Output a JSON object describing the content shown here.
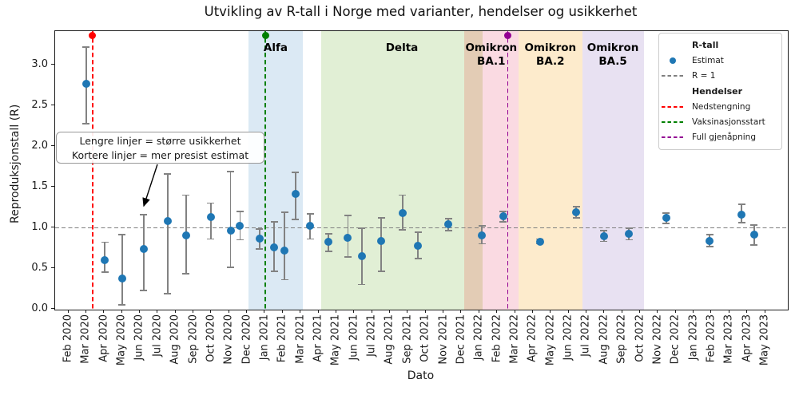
{
  "title": "Utvikling av R-tall i Norge med varianter, hendelser og usikkerhet",
  "axes": {
    "x_label": "Dato",
    "y_label": "Reproduksjonstall (R)"
  },
  "annotation": {
    "line1": "Lengre linjer = større usikkerhet",
    "line2": "Kortere linjer = mer presist estimat"
  },
  "legend": {
    "rows": [
      {
        "type": "header",
        "label": "R-tall"
      },
      {
        "type": "item",
        "marker": "dot",
        "color": "#1f77b4",
        "label": "Estimat"
      },
      {
        "type": "item",
        "marker": "dash",
        "color": "#7f7f7f",
        "label": "R = 1"
      },
      {
        "type": "header",
        "label": "Hendelser"
      },
      {
        "type": "item",
        "marker": "dash",
        "color": "#ff0000",
        "label": "Nedstengning"
      },
      {
        "type": "item",
        "marker": "dash",
        "color": "#008000",
        "label": "Vaksinasjonsstart"
      },
      {
        "type": "item",
        "marker": "dash",
        "color": "#930093",
        "label": "Full gjenåpning"
      }
    ]
  },
  "chart_data": {
    "type": "scatter",
    "title": "Utvikling av R-tall i Norge med varianter, hendelser og usikkerhet",
    "xlabel": "Dato",
    "ylabel": "Reproduksjonstall (R)",
    "ylim": [
      0,
      3.41
    ],
    "grid": false,
    "legend_position": "upper right",
    "y_tick_labels": [
      "0.0",
      "0.5",
      "1.0",
      "1.5",
      "2.0",
      "2.5",
      "3.0"
    ],
    "x_tick_labels": [
      "Feb 2020",
      "Mar 2020",
      "Apr 2020",
      "May 2020",
      "Jun 2020",
      "Jul 2020",
      "Aug 2020",
      "Sep 2020",
      "Oct 2020",
      "Nov 2020",
      "Dec 2020",
      "Jan 2021",
      "Feb 2021",
      "Mar 2021",
      "Apr 2021",
      "May 2021",
      "Jun 2021",
      "Jul 2021",
      "Aug 2021",
      "Sep 2021",
      "Oct 2021",
      "Nov 2021",
      "Dec 2021",
      "Jan 2022",
      "Feb 2022",
      "Mar 2022",
      "Apr 2022",
      "May 2022",
      "Jun 2022",
      "Jul 2022",
      "Aug 2022",
      "Sep 2022",
      "Oct 2022",
      "Nov 2022",
      "Dec 2022",
      "Jan 2023",
      "Feb 2023",
      "Mar 2023",
      "Apr 2023",
      "May 2023"
    ],
    "reference_line": {
      "label": "R = 1",
      "value": 1.0,
      "color": "#7f7f7f"
    },
    "points_note": "m = months after Feb 2020 tick; r = R estimate; lo/hi = uncertainty interval",
    "points": [
      {
        "date": "Mar 2020",
        "m": 0.98,
        "r": 2.77,
        "lo": 2.28,
        "hi": 3.22
      },
      {
        "date": "Apr 2020",
        "m": 2.03,
        "r": 0.6,
        "lo": 0.45,
        "hi": 0.82
      },
      {
        "date": "May 2020",
        "m": 2.98,
        "r": 0.37,
        "lo": 0.05,
        "hi": 0.91
      },
      {
        "date": "Jun 2020",
        "m": 4.19,
        "r": 0.74,
        "lo": 0.23,
        "hi": 1.16
      },
      {
        "date": "Jul 2020",
        "m": 5.53,
        "r": 1.08,
        "lo": 0.19,
        "hi": 1.66
      },
      {
        "date": "Aug 2020",
        "m": 6.56,
        "r": 0.9,
        "lo": 0.43,
        "hi": 1.4
      },
      {
        "date": "Oct 2020",
        "m": 7.95,
        "r": 1.13,
        "lo": 0.86,
        "hi": 1.3
      },
      {
        "date": "Nov 2020",
        "m": 9.06,
        "r": 0.96,
        "lo": 0.51,
        "hi": 1.69
      },
      {
        "date": "Nov 2020",
        "m": 9.59,
        "r": 1.02,
        "lo": 0.85,
        "hi": 1.2
      },
      {
        "date": "Dec 2020",
        "m": 10.68,
        "r": 0.86,
        "lo": 0.74,
        "hi": 0.98
      },
      {
        "date": "Jan 2021",
        "m": 11.5,
        "r": 0.76,
        "lo": 0.46,
        "hi": 1.07
      },
      {
        "date": "Feb 2021",
        "m": 12.08,
        "r": 0.72,
        "lo": 0.36,
        "hi": 1.19
      },
      {
        "date": "Mar 2021",
        "m": 12.7,
        "r": 1.41,
        "lo": 1.1,
        "hi": 1.68
      },
      {
        "date": "Mar 2021",
        "m": 13.51,
        "r": 1.02,
        "lo": 0.86,
        "hi": 1.17
      },
      {
        "date": "Apr 2021",
        "m": 14.55,
        "r": 0.83,
        "lo": 0.71,
        "hi": 0.92
      },
      {
        "date": "May 2021",
        "m": 15.63,
        "r": 0.87,
        "lo": 0.64,
        "hi": 1.15
      },
      {
        "date": "Jun 2021",
        "m": 16.4,
        "r": 0.65,
        "lo": 0.3,
        "hi": 0.99
      },
      {
        "date": "Jul 2021",
        "m": 17.49,
        "r": 0.84,
        "lo": 0.46,
        "hi": 1.12
      },
      {
        "date": "Aug 2021",
        "m": 18.68,
        "r": 1.18,
        "lo": 0.97,
        "hi": 1.4
      },
      {
        "date": "Sep 2021",
        "m": 19.55,
        "r": 0.78,
        "lo": 0.62,
        "hi": 0.94
      },
      {
        "date": "Nov 2021",
        "m": 21.26,
        "r": 1.04,
        "lo": 0.96,
        "hi": 1.11
      },
      {
        "date": "Jan 2022",
        "m": 23.13,
        "r": 0.9,
        "lo": 0.8,
        "hi": 1.02
      },
      {
        "date": "Feb 2022",
        "m": 24.32,
        "r": 1.14,
        "lo": 1.07,
        "hi": 1.2
      },
      {
        "date": "Apr 2022",
        "m": 26.37,
        "r": 0.83,
        "lo": 0.8,
        "hi": 0.86
      },
      {
        "date": "Jun 2022",
        "m": 28.41,
        "r": 1.19,
        "lo": 1.12,
        "hi": 1.26
      },
      {
        "date": "Aug 2022",
        "m": 29.95,
        "r": 0.89,
        "lo": 0.83,
        "hi": 0.96
      },
      {
        "date": "Sep 2022",
        "m": 31.36,
        "r": 0.92,
        "lo": 0.85,
        "hi": 0.99
      },
      {
        "date": "Nov 2022",
        "m": 33.45,
        "r": 1.12,
        "lo": 1.05,
        "hi": 1.18
      },
      {
        "date": "Feb 2023",
        "m": 35.88,
        "r": 0.84,
        "lo": 0.77,
        "hi": 0.91
      },
      {
        "date": "Mar 2023",
        "m": 37.67,
        "r": 1.16,
        "lo": 1.06,
        "hi": 1.29
      },
      {
        "date": "Apr 2023",
        "m": 38.37,
        "r": 0.91,
        "lo": 0.79,
        "hi": 1.03
      }
    ],
    "events": [
      {
        "label": "Nedstengning",
        "m": 1.34,
        "color": "#ff0000"
      },
      {
        "label": "Vaksinasjonsstart",
        "m": 11.01,
        "color": "#008000"
      },
      {
        "label": "Full gjenåpning",
        "m": 24.58,
        "color": "#930093"
      }
    ],
    "variant_strips": [
      {
        "name": "alfa",
        "color": "#dbe9f4",
        "m0": 10.08,
        "m1": 13.09
      },
      {
        "name": "delta",
        "color": "#e1efd5",
        "m0": 14.14,
        "m1": 22.12
      },
      {
        "name": "delta-ba1-overlap",
        "color": "#e3ccb5",
        "m0": 22.12,
        "m1": 23.16
      },
      {
        "name": "omikron-ba1",
        "color": "#fadae2",
        "m0": 23.16,
        "m1": 25.17
      },
      {
        "name": "omikron-ba2",
        "color": "#fdebcc",
        "m0": 25.17,
        "m1": 28.75
      },
      {
        "name": "omikron-ba5",
        "color": "#e8e1f2",
        "m0": 28.75,
        "m1": 32.18
      }
    ],
    "variant_labels": [
      {
        "text": "Alfa",
        "m": 11.58
      },
      {
        "text": "Delta",
        "m": 18.65
      },
      {
        "text": "Omikron\nBA.1",
        "m": 23.65
      },
      {
        "text": "Omikron\nBA.2",
        "m": 26.96
      },
      {
        "text": "Omikron\nBA.5",
        "m": 30.46
      }
    ],
    "event_marker_r": 3.355
  }
}
